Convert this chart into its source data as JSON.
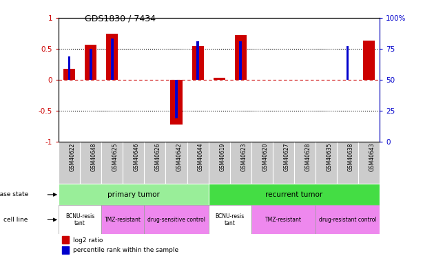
{
  "title": "GDS1830 / 7434",
  "samples": [
    "GSM40622",
    "GSM40648",
    "GSM40625",
    "GSM40646",
    "GSM40626",
    "GSM40642",
    "GSM40644",
    "GSM40619",
    "GSM40623",
    "GSM40620",
    "GSM40627",
    "GSM40628",
    "GSM40635",
    "GSM40638",
    "GSM40643"
  ],
  "log2_ratio": [
    0.18,
    0.57,
    0.75,
    0.0,
    0.0,
    -0.72,
    0.55,
    0.03,
    0.72,
    0.0,
    0.0,
    0.0,
    0.0,
    0.0,
    0.63
  ],
  "percentile_scaled": [
    0.38,
    0.5,
    0.67,
    0.0,
    0.0,
    -0.62,
    0.62,
    0.0,
    0.62,
    0.0,
    0.0,
    0.0,
    0.0,
    0.55,
    0.0
  ],
  "bar_color": "#cc0000",
  "blue_color": "#0000cc",
  "yticks": [
    -1,
    -0.5,
    0,
    0.5,
    1
  ],
  "ytick_labels": [
    "-1",
    "-0.5",
    "0",
    "0.5",
    "1"
  ],
  "y2ticks": [
    0,
    25,
    50,
    75,
    100
  ],
  "y2tick_labels": [
    "0",
    "25",
    "50",
    "75",
    "100%"
  ],
  "disease_states": [
    {
      "label": "primary tumor",
      "start": 0,
      "end": 6,
      "color": "#99ee99"
    },
    {
      "label": "recurrent tumor",
      "start": 7,
      "end": 14,
      "color": "#44dd44"
    }
  ],
  "cell_lines": [
    {
      "label": "BCNU-resis\ntant",
      "start": 0,
      "end": 1,
      "color": "#ffffff"
    },
    {
      "label": "TMZ-resistant",
      "start": 2,
      "end": 3,
      "color": "#ee88ee"
    },
    {
      "label": "drug-sensitive control",
      "start": 4,
      "end": 6,
      "color": "#ee88ee"
    },
    {
      "label": "BCNU-resis\ntant",
      "start": 7,
      "end": 8,
      "color": "#ffffff"
    },
    {
      "label": "TMZ-resistant",
      "start": 9,
      "end": 11,
      "color": "#ee88ee"
    },
    {
      "label": "drug-resistant control",
      "start": 12,
      "end": 14,
      "color": "#ee88ee"
    }
  ],
  "sample_box_color": "#cccccc",
  "bar_width": 0.55,
  "blue_bar_width": 0.12
}
